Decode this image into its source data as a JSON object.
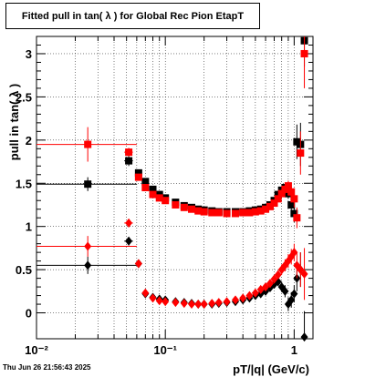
{
  "title": "Fitted pull in tan( λ ) for Global Rec Pion EtapT",
  "timestamp": "Thu Jun 26 21:56:43 2025",
  "chart_data": {
    "type": "scatter",
    "title": "Fitted pull in tan( λ ) for Global Rec Pion EtapT",
    "xlabel": "pT/|q| (GeV/c)",
    "ylabel": "pull in tan( λ )",
    "xscale": "log",
    "xlim": [
      0.01,
      1.4
    ],
    "ylim": [
      -0.3,
      3.2
    ],
    "grid": true,
    "x_ticks": [
      {
        "v": 0.01,
        "label": "10⁻²"
      },
      {
        "v": 0.1,
        "label": "10⁻¹"
      },
      {
        "v": 1,
        "label": "1"
      }
    ],
    "y_ticks": [
      {
        "v": 0,
        "label": "0"
      },
      {
        "v": 0.5,
        "label": "0.5"
      },
      {
        "v": 1,
        "label": "1"
      },
      {
        "v": 1.5,
        "label": "1.5"
      },
      {
        "v": 2,
        "label": "2"
      },
      {
        "v": 2.5,
        "label": "2.5"
      },
      {
        "v": 3,
        "label": "3"
      }
    ],
    "series": [
      {
        "marker": "square",
        "color": "#000000",
        "points": [
          [
            0.025,
            1.49,
            0.015,
            0.035,
            0.08
          ],
          [
            0.052,
            1.76,
            0.004,
            0.004,
            0.06
          ],
          [
            0.062,
            1.62,
            0.002,
            0.002,
            0.04
          ],
          [
            0.07,
            1.52,
            0.002,
            0.002,
            0.03
          ],
          [
            0.08,
            1.43,
            0.002,
            0.002,
            0.02
          ],
          [
            0.09,
            1.37,
            0.002,
            0.002,
            0.02
          ],
          [
            0.1,
            1.33,
            0,
            0,
            0.02
          ],
          [
            0.12,
            1.28,
            0,
            0,
            0.01
          ],
          [
            0.14,
            1.24,
            0,
            0,
            0.01
          ],
          [
            0.16,
            1.22,
            0,
            0,
            0.01
          ],
          [
            0.18,
            1.2,
            0,
            0,
            0.01
          ],
          [
            0.2,
            1.19,
            0,
            0,
            0.01
          ],
          [
            0.23,
            1.18,
            0,
            0,
            0.01
          ],
          [
            0.26,
            1.17,
            0,
            0,
            0.01
          ],
          [
            0.3,
            1.17,
            0,
            0,
            0.01
          ],
          [
            0.35,
            1.17,
            0,
            0,
            0.01
          ],
          [
            0.4,
            1.17,
            0,
            0,
            0.01
          ],
          [
            0.45,
            1.18,
            0,
            0,
            0.01
          ],
          [
            0.5,
            1.19,
            0,
            0,
            0.02
          ],
          [
            0.55,
            1.2,
            0,
            0,
            0.02
          ],
          [
            0.6,
            1.22,
            0,
            0,
            0.02
          ],
          [
            0.65,
            1.25,
            0,
            0,
            0.02
          ],
          [
            0.7,
            1.3,
            0,
            0,
            0.03
          ],
          [
            0.75,
            1.37,
            0,
            0,
            0.03
          ],
          [
            0.8,
            1.42,
            0,
            0,
            0.04
          ],
          [
            0.85,
            1.45,
            0,
            0,
            0.05
          ],
          [
            0.9,
            1.38,
            0,
            0,
            0.06
          ],
          [
            0.95,
            1.25,
            0,
            0,
            0.08
          ],
          [
            1.0,
            1.15,
            0,
            0,
            0.1
          ],
          [
            1.05,
            1.98,
            0,
            0,
            0.2
          ],
          [
            1.12,
            1.95,
            0,
            0,
            0.25
          ],
          [
            1.2,
            3.15,
            0,
            0,
            0.3
          ]
        ]
      },
      {
        "marker": "square",
        "color": "#ff0000",
        "points": [
          [
            0.025,
            1.95,
            0.015,
            0.035,
            0.2
          ],
          [
            0.052,
            1.86,
            0.004,
            0.004,
            0.05
          ],
          [
            0.062,
            1.57,
            0.002,
            0.002,
            0.03
          ],
          [
            0.07,
            1.45,
            0.002,
            0.002,
            0.02
          ],
          [
            0.08,
            1.37,
            0.002,
            0.002,
            0.02
          ],
          [
            0.09,
            1.33,
            0.002,
            0.002,
            0.02
          ],
          [
            0.1,
            1.3,
            0,
            0,
            0.01
          ],
          [
            0.12,
            1.25,
            0,
            0,
            0.01
          ],
          [
            0.14,
            1.22,
            0,
            0,
            0.01
          ],
          [
            0.16,
            1.2,
            0,
            0,
            0.01
          ],
          [
            0.18,
            1.18,
            0,
            0,
            0.01
          ],
          [
            0.2,
            1.17,
            0,
            0,
            0.01
          ],
          [
            0.23,
            1.16,
            0,
            0,
            0.01
          ],
          [
            0.26,
            1.16,
            0,
            0,
            0.01
          ],
          [
            0.3,
            1.15,
            0,
            0,
            0.01
          ],
          [
            0.35,
            1.15,
            0,
            0,
            0.01
          ],
          [
            0.4,
            1.16,
            0,
            0,
            0.01
          ],
          [
            0.45,
            1.16,
            0,
            0,
            0.01
          ],
          [
            0.5,
            1.17,
            0,
            0,
            0.02
          ],
          [
            0.55,
            1.18,
            0,
            0,
            0.02
          ],
          [
            0.6,
            1.2,
            0,
            0,
            0.02
          ],
          [
            0.65,
            1.23,
            0,
            0,
            0.02
          ],
          [
            0.7,
            1.27,
            0,
            0,
            0.03
          ],
          [
            0.75,
            1.32,
            0,
            0,
            0.03
          ],
          [
            0.8,
            1.38,
            0,
            0,
            0.04
          ],
          [
            0.85,
            1.43,
            0,
            0,
            0.05
          ],
          [
            0.9,
            1.47,
            0,
            0,
            0.06
          ],
          [
            0.95,
            1.4,
            0,
            0,
            0.08
          ],
          [
            1.0,
            1.32,
            0,
            0,
            0.1
          ],
          [
            1.05,
            1.1,
            0,
            0,
            0.12
          ],
          [
            1.12,
            1.85,
            0,
            0,
            0.25
          ],
          [
            1.2,
            3.0,
            0,
            0,
            0.4
          ]
        ]
      },
      {
        "marker": "diamond",
        "color": "#000000",
        "points": [
          [
            0.025,
            0.55,
            0.015,
            0.035,
            0.1
          ],
          [
            0.052,
            0.83,
            0.004,
            0.004,
            0.05
          ],
          [
            0.062,
            0.57,
            0.002,
            0.002,
            0.03
          ],
          [
            0.07,
            0.22,
            0.002,
            0.002,
            0.02
          ],
          [
            0.08,
            0.18,
            0.002,
            0.002,
            0.02
          ],
          [
            0.09,
            0.16,
            0,
            0,
            0.01
          ],
          [
            0.1,
            0.15,
            0,
            0,
            0.01
          ],
          [
            0.12,
            0.13,
            0,
            0,
            0.01
          ],
          [
            0.14,
            0.12,
            0,
            0,
            0.01
          ],
          [
            0.16,
            0.11,
            0,
            0,
            0.01
          ],
          [
            0.18,
            0.1,
            0,
            0,
            0.01
          ],
          [
            0.2,
            0.1,
            0,
            0,
            0.01
          ],
          [
            0.23,
            0.1,
            0,
            0,
            0.01
          ],
          [
            0.26,
            0.11,
            0,
            0,
            0.01
          ],
          [
            0.3,
            0.12,
            0,
            0,
            0.01
          ],
          [
            0.35,
            0.13,
            0,
            0,
            0.01
          ],
          [
            0.4,
            0.15,
            0,
            0,
            0.02
          ],
          [
            0.45,
            0.17,
            0,
            0,
            0.02
          ],
          [
            0.5,
            0.2,
            0,
            0,
            0.02
          ],
          [
            0.55,
            0.22,
            0,
            0,
            0.02
          ],
          [
            0.6,
            0.25,
            0,
            0,
            0.03
          ],
          [
            0.65,
            0.29,
            0,
            0,
            0.03
          ],
          [
            0.7,
            0.33,
            0,
            0,
            0.04
          ],
          [
            0.75,
            0.36,
            0,
            0,
            0.05
          ],
          [
            0.8,
            0.3,
            0,
            0,
            0.06
          ],
          [
            0.85,
            0.25,
            0,
            0,
            0.07
          ],
          [
            0.9,
            0.1,
            0,
            0,
            0.08
          ],
          [
            0.95,
            0.15,
            0,
            0,
            0.09
          ],
          [
            1.0,
            0.22,
            0,
            0,
            0.1
          ],
          [
            1.05,
            0.4,
            0,
            0,
            0.15
          ],
          [
            1.12,
            0.5,
            0,
            0,
            0.2
          ],
          [
            1.2,
            -0.28,
            0,
            0,
            0.3
          ]
        ]
      },
      {
        "marker": "diamond",
        "color": "#ff0000",
        "points": [
          [
            0.025,
            0.77,
            0.015,
            0.035,
            0.12
          ],
          [
            0.052,
            1.04,
            0.004,
            0.004,
            0.05
          ],
          [
            0.062,
            0.57,
            0.002,
            0.002,
            0.03
          ],
          [
            0.07,
            0.23,
            0.002,
            0.002,
            0.02
          ],
          [
            0.08,
            0.17,
            0.002,
            0.002,
            0.02
          ],
          [
            0.09,
            0.14,
            0,
            0,
            0.01
          ],
          [
            0.1,
            0.13,
            0,
            0,
            0.01
          ],
          [
            0.12,
            0.12,
            0,
            0,
            0.01
          ],
          [
            0.14,
            0.11,
            0,
            0,
            0.01
          ],
          [
            0.16,
            0.1,
            0,
            0,
            0.01
          ],
          [
            0.18,
            0.1,
            0,
            0,
            0.01
          ],
          [
            0.2,
            0.1,
            0,
            0,
            0.01
          ],
          [
            0.23,
            0.11,
            0,
            0,
            0.01
          ],
          [
            0.26,
            0.12,
            0,
            0,
            0.01
          ],
          [
            0.3,
            0.13,
            0,
            0,
            0.01
          ],
          [
            0.35,
            0.15,
            0,
            0,
            0.01
          ],
          [
            0.4,
            0.17,
            0,
            0,
            0.02
          ],
          [
            0.45,
            0.2,
            0,
            0,
            0.02
          ],
          [
            0.5,
            0.23,
            0,
            0,
            0.02
          ],
          [
            0.55,
            0.27,
            0,
            0,
            0.02
          ],
          [
            0.6,
            0.3,
            0,
            0,
            0.03
          ],
          [
            0.65,
            0.34,
            0,
            0,
            0.03
          ],
          [
            0.7,
            0.39,
            0,
            0,
            0.04
          ],
          [
            0.75,
            0.44,
            0,
            0,
            0.05
          ],
          [
            0.8,
            0.5,
            0,
            0,
            0.06
          ],
          [
            0.85,
            0.55,
            0,
            0,
            0.07
          ],
          [
            0.9,
            0.6,
            0,
            0,
            0.08
          ],
          [
            0.95,
            0.65,
            0,
            0,
            0.09
          ],
          [
            1.0,
            0.7,
            0,
            0,
            0.1
          ],
          [
            1.05,
            0.55,
            0,
            0,
            0.15
          ],
          [
            1.12,
            0.5,
            0,
            0,
            0.2
          ],
          [
            1.2,
            0.45,
            0,
            0,
            0.3
          ]
        ]
      }
    ]
  }
}
